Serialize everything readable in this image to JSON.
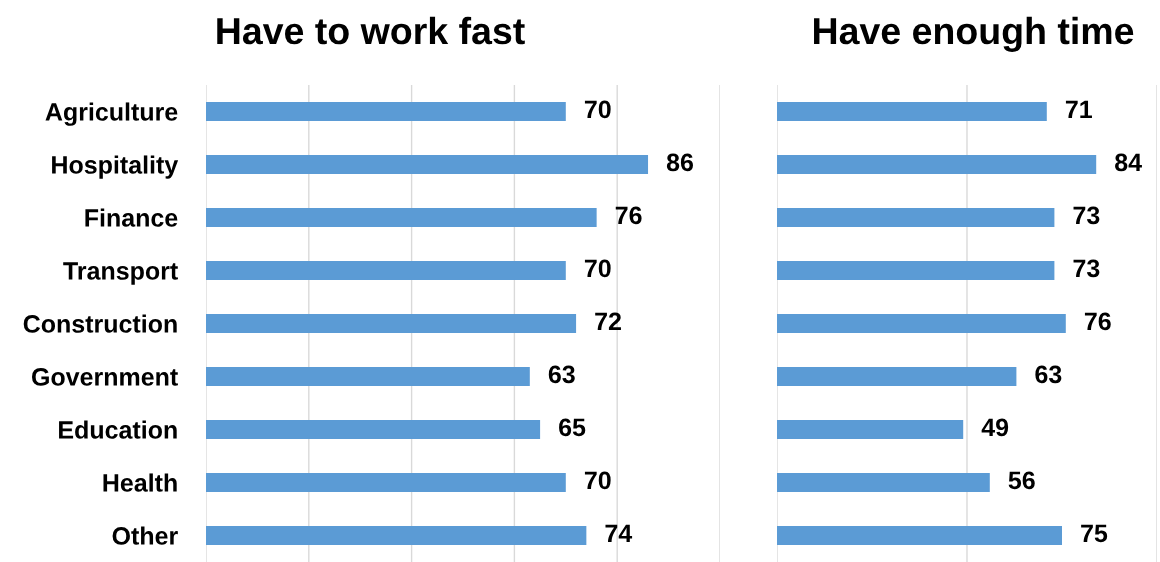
{
  "chart_data": [
    {
      "type": "bar",
      "orientation": "horizontal",
      "title": "Have to work fast",
      "categories": [
        "Agriculture",
        "Hospitality",
        "Finance",
        "Transport",
        "Construction",
        "Government",
        "Education",
        "Health",
        "Other"
      ],
      "values": [
        70,
        86,
        76,
        70,
        72,
        63,
        65,
        70,
        74
      ],
      "color": "#5b9bd5",
      "xlim": [
        0,
        100
      ],
      "xticks": [
        {
          "value": 0,
          "label": null
        },
        {
          "value": 20,
          "label": null
        },
        {
          "value": 40,
          "label": null
        },
        {
          "value": 60,
          "label": null
        },
        {
          "value": 80,
          "label": null
        },
        {
          "value": 100,
          "label": null
        }
      ],
      "grid": "x",
      "data_labels": true,
      "tick_labels": "y"
    },
    {
      "type": "bar",
      "orientation": "horizontal",
      "title": "Have enough time",
      "categories": [
        null,
        null,
        null,
        null,
        null,
        null,
        null,
        null,
        null
      ],
      "values": [
        71,
        84,
        73,
        73,
        76,
        63,
        49,
        56,
        75
      ],
      "color": "#5b9bd5",
      "xlim": [
        0,
        100
      ],
      "xticks": [
        {
          "value": 0,
          "label": null
        },
        {
          "value": 50,
          "label": null
        },
        {
          "value": 100,
          "label": null
        }
      ],
      "grid": "x",
      "data_labels": true
    }
  ]
}
